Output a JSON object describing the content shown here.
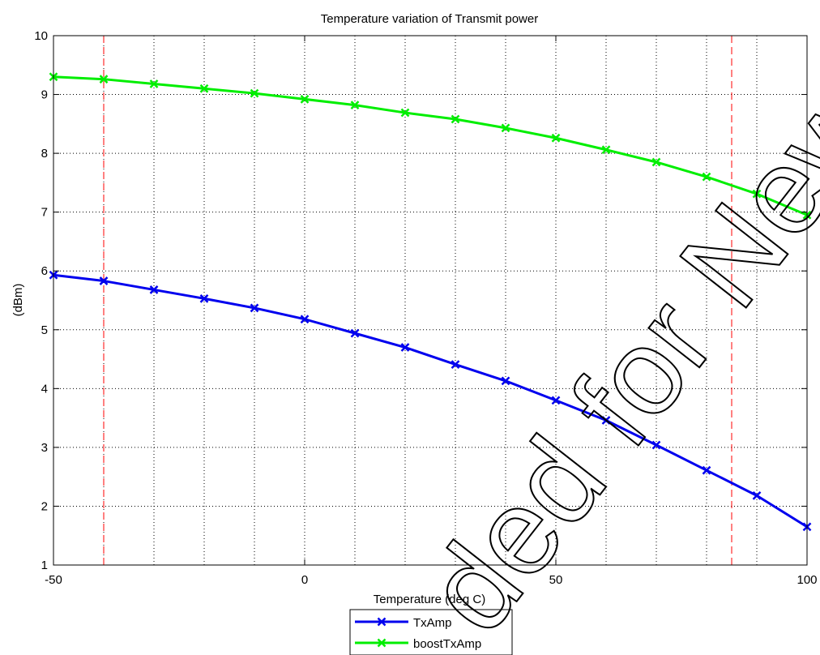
{
  "chart_data": {
    "type": "line",
    "title": "Temperature variation of Transmit power",
    "xlabel": "Temperature (deg C)",
    "ylabel": "(dBm)",
    "xlim": [
      -50,
      100
    ],
    "ylim": [
      1,
      10
    ],
    "x_ticks": [
      -50,
      0,
      50,
      100
    ],
    "y_ticks": [
      1,
      2,
      3,
      4,
      5,
      6,
      7,
      8,
      9,
      10
    ],
    "x_tick_labels": [
      "-50",
      "0",
      "50",
      "100"
    ],
    "y_tick_labels": [
      "1",
      "2",
      "3",
      "4",
      "5",
      "6",
      "7",
      "8",
      "9",
      "10"
    ],
    "x_grid": [
      -50,
      -40,
      -30,
      -20,
      -10,
      0,
      10,
      20,
      30,
      40,
      50,
      60,
      70,
      80,
      90,
      100
    ],
    "grid": true,
    "grid_style": "dotted",
    "x": [
      -50,
      -40,
      -30,
      -20,
      -10,
      0,
      10,
      20,
      30,
      40,
      50,
      60,
      70,
      80,
      90,
      100
    ],
    "series": [
      {
        "name": "TxAmp",
        "color": "#0000ee",
        "marker": "x",
        "values": [
          5.93,
          5.83,
          5.68,
          5.53,
          5.37,
          5.18,
          4.94,
          4.7,
          4.41,
          4.13,
          3.8,
          3.46,
          3.04,
          2.61,
          2.18,
          1.65
        ]
      },
      {
        "name": "boostTxAmp",
        "color": "#00ee00",
        "marker": "x",
        "values": [
          9.3,
          9.26,
          9.18,
          9.1,
          9.02,
          8.92,
          8.82,
          8.69,
          8.58,
          8.43,
          8.26,
          8.06,
          7.85,
          7.6,
          7.31,
          6.95
        ]
      }
    ],
    "reference_lines": [
      {
        "x": -40,
        "color": "#ff0000",
        "style": "dashed"
      },
      {
        "x": 85,
        "color": "#ff0000",
        "style": "dashed"
      }
    ],
    "legend_position": "bottom-center, outside plot"
  },
  "watermark": {
    "text": "ded for New De"
  }
}
